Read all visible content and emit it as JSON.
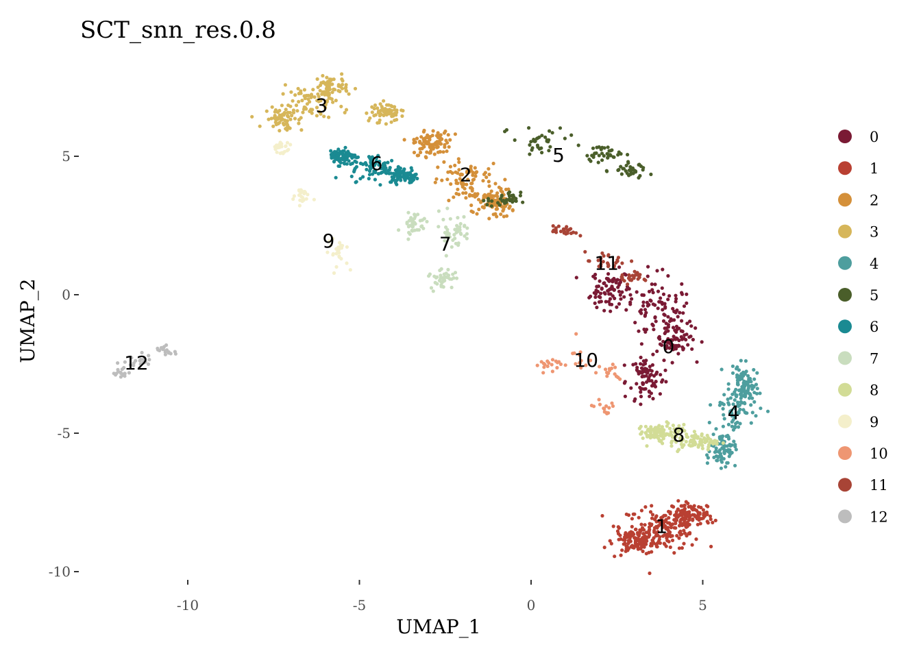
{
  "chart_data": {
    "type": "scatter",
    "title": "SCT_snn_res.0.8",
    "xlabel": "UMAP_1",
    "ylabel": "UMAP_2",
    "xlim": [
      -12.6,
      7.2
    ],
    "ylim": [
      -10.5,
      9.6
    ],
    "x_ticks": [
      -10,
      -5,
      0,
      5
    ],
    "x_tick_labels": [
      "-10",
      "-5",
      "0",
      "5"
    ],
    "y_ticks": [
      5,
      0,
      -5,
      -10
    ],
    "y_tick_labels": [
      "5",
      "0",
      "-5",
      "-10"
    ],
    "grid": false,
    "legend_position": "right",
    "clusters": [
      {
        "name": "0",
        "color": "#7A1A34",
        "label_pos": [
          4.0,
          -1.9
        ],
        "centers": [
          [
            3.7,
            -0.5
          ],
          [
            3.3,
            -3.0
          ],
          [
            4.2,
            -1.5
          ],
          [
            2.3,
            0.2
          ]
        ],
        "spread": [
          0.85,
          1.1
        ],
        "count": 330
      },
      {
        "name": "1",
        "color": "#B94032",
        "label_pos": [
          3.8,
          -8.4
        ],
        "centers": [
          [
            3.8,
            -8.4
          ],
          [
            3.1,
            -8.9
          ],
          [
            4.6,
            -8.0
          ]
        ],
        "spread": [
          1.1,
          0.75
        ],
        "count": 380
      },
      {
        "name": "2",
        "color": "#D4903A",
        "label_pos": [
          -1.9,
          4.3
        ],
        "centers": [
          [
            -1.8,
            4.0
          ],
          [
            -2.9,
            5.5
          ],
          [
            -1.1,
            3.3
          ]
        ],
        "spread": [
          0.8,
          0.75
        ],
        "count": 280
      },
      {
        "name": "3",
        "color": "#D6B65A",
        "label_pos": [
          -6.1,
          6.8
        ],
        "centers": [
          [
            -6.5,
            6.9
          ],
          [
            -5.8,
            7.5
          ],
          [
            -4.2,
            6.6
          ],
          [
            -7.2,
            6.4
          ]
        ],
        "spread": [
          0.75,
          0.55
        ],
        "count": 260
      },
      {
        "name": "4",
        "color": "#4E9E9E",
        "label_pos": [
          5.9,
          -4.3
        ],
        "centers": [
          [
            6.0,
            -4.0
          ],
          [
            5.6,
            -5.6
          ],
          [
            6.2,
            -3.2
          ]
        ],
        "spread": [
          0.55,
          0.95
        ],
        "count": 240
      },
      {
        "name": "5",
        "color": "#4A5E2A",
        "label_pos": [
          0.8,
          5.0
        ],
        "centers": [
          [
            0.3,
            5.5
          ],
          [
            2.1,
            5.1
          ],
          [
            2.8,
            4.5
          ],
          [
            -0.8,
            3.4
          ]
        ],
        "spread": [
          0.75,
          0.45
        ],
        "count": 140
      },
      {
        "name": "6",
        "color": "#1A8A92",
        "label_pos": [
          -4.5,
          4.7
        ],
        "centers": [
          [
            -4.5,
            4.6
          ],
          [
            -5.5,
            5.0
          ],
          [
            -3.7,
            4.3
          ]
        ],
        "spread": [
          0.65,
          0.45
        ],
        "count": 230
      },
      {
        "name": "7",
        "color": "#C9DDBE",
        "label_pos": [
          -2.5,
          1.8
        ],
        "centers": [
          [
            -2.3,
            2.3
          ],
          [
            -2.6,
            0.6
          ],
          [
            -3.4,
            2.6
          ]
        ],
        "spread": [
          0.5,
          0.6
        ],
        "count": 120
      },
      {
        "name": "8",
        "color": "#D2DC96",
        "label_pos": [
          4.3,
          -5.1
        ],
        "centers": [
          [
            4.2,
            -5.1
          ],
          [
            3.6,
            -5.0
          ],
          [
            4.9,
            -5.3
          ]
        ],
        "spread": [
          0.75,
          0.4
        ],
        "count": 190
      },
      {
        "name": "9",
        "color": "#F4EFCB",
        "label_pos": [
          -5.9,
          1.9
        ],
        "centers": [
          [
            -5.7,
            1.6
          ],
          [
            -6.7,
            3.6
          ],
          [
            -7.3,
            5.3
          ]
        ],
        "spread": [
          0.35,
          0.5
        ],
        "count": 70
      },
      {
        "name": "10",
        "color": "#EE9672",
        "label_pos": [
          1.6,
          -2.4
        ],
        "centers": [
          [
            1.2,
            -2.3
          ],
          [
            0.5,
            -2.5
          ],
          [
            2.3,
            -2.8
          ],
          [
            2.1,
            -4.1
          ]
        ],
        "spread": [
          0.55,
          0.45
        ],
        "count": 60
      },
      {
        "name": "11",
        "color": "#A84436",
        "label_pos": [
          2.2,
          1.1
        ],
        "centers": [
          [
            2.2,
            1.2
          ],
          [
            1.0,
            2.3
          ],
          [
            2.9,
            0.6
          ]
        ],
        "spread": [
          0.55,
          0.3
        ],
        "count": 75
      },
      {
        "name": "12",
        "color": "#BDBDBD",
        "label_pos": [
          -11.5,
          -2.5
        ],
        "centers": [
          [
            -11.5,
            -2.4
          ],
          [
            -11.9,
            -2.8
          ],
          [
            -10.6,
            -2.0
          ]
        ],
        "spread": [
          0.45,
          0.25
        ],
        "count": 55
      }
    ]
  }
}
